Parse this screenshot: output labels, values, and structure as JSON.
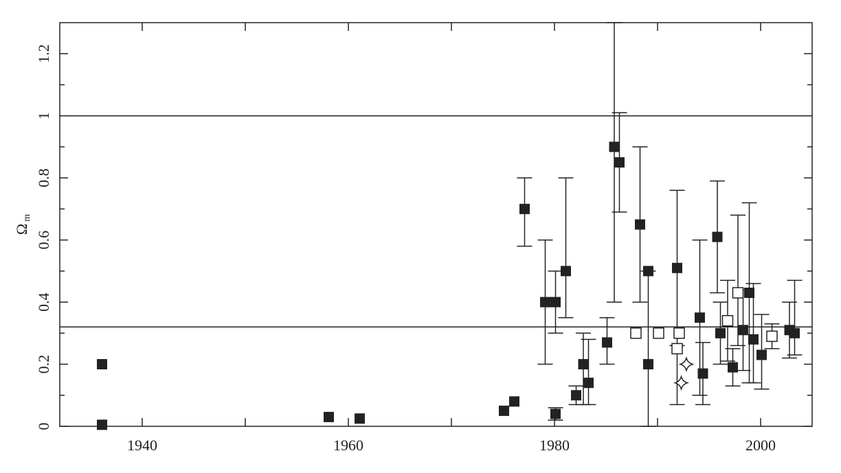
{
  "chart_data": {
    "type": "scatter",
    "ylabel": "Ω",
    "ylabel_subscript": "m",
    "xlim": [
      1932,
      2005
    ],
    "ylim": [
      0,
      1.3
    ],
    "xticks": [
      1940,
      1960,
      1980,
      2000
    ],
    "x_minor_ticks": [
      1950,
      1970,
      1990
    ],
    "yticks": [
      0,
      0.2,
      0.4,
      0.6,
      0.8,
      1,
      1.2
    ],
    "y_minor_ticks": [
      0.1,
      0.3,
      0.5,
      0.7,
      0.9,
      1.1
    ],
    "hlines": [
      1,
      0.32
    ],
    "series": [
      {
        "marker": "filled-square",
        "color": "#222",
        "x": [
          1936.1,
          1936.1,
          1958.1,
          1961.1,
          1975.1,
          1976.1,
          1977.1,
          1979.1,
          1980.1,
          1980.1,
          1981.1,
          1982.1,
          1982.8,
          1983.3,
          1985.1,
          1985.8,
          1986.3,
          1988.3,
          1989.1,
          1989.1,
          1991.9,
          1994.1,
          1994.4,
          1995.8,
          1996.1,
          1997.3,
          1998.3,
          1998.9,
          1999.3,
          2000.1,
          2002.8,
          2003.3
        ],
        "values": [
          0.2,
          0.005,
          0.03,
          0.025,
          0.05,
          0.08,
          0.7,
          0.4,
          0.4,
          0.04,
          0.5,
          0.1,
          0.2,
          0.14,
          0.27,
          0.9,
          0.85,
          0.65,
          0.5,
          0.2,
          0.51,
          0.35,
          0.17,
          0.61,
          0.3,
          0.19,
          0.31,
          0.43,
          0.28,
          0.23,
          0.31,
          0.3
        ],
        "lower": [
          null,
          null,
          null,
          null,
          null,
          null,
          0.58,
          0.2,
          0.3,
          0.02,
          0.35,
          0.07,
          0.07,
          0.07,
          0.2,
          0.4,
          0.69,
          0.4,
          0,
          null,
          0.26,
          0.1,
          0.07,
          0.43,
          0.2,
          0.13,
          0.18,
          0.14,
          0.14,
          0.12,
          0.22,
          0.23
        ],
        "upper": [
          null,
          null,
          null,
          null,
          null,
          null,
          0.8,
          0.6,
          0.5,
          0.06,
          0.8,
          0.13,
          0.3,
          0.28,
          0.35,
          1.3,
          1.01,
          0.9,
          0.5,
          null,
          0.76,
          0.6,
          0.27,
          0.79,
          0.4,
          0.25,
          0.44,
          0.72,
          0.46,
          0.36,
          0.4,
          0.47
        ]
      },
      {
        "marker": "open-square",
        "color": "#222",
        "x": [
          1987.9,
          1990.1,
          1992.1,
          1991.9,
          1996.8,
          1997.8,
          2001.1
        ],
        "values": [
          0.3,
          0.3,
          0.3,
          0.25,
          0.34,
          0.43,
          0.29
        ],
        "lower": [
          null,
          null,
          null,
          0.07,
          0.21,
          0.26,
          0.25
        ],
        "upper": [
          null,
          null,
          null,
          0.26,
          0.47,
          0.68,
          0.33
        ]
      },
      {
        "marker": "star",
        "color": "#222",
        "x": [
          1992.8,
          1992.3
        ],
        "values": [
          0.2,
          0.14
        ],
        "lower": [
          null,
          null
        ],
        "upper": [
          null,
          null
        ]
      }
    ]
  }
}
